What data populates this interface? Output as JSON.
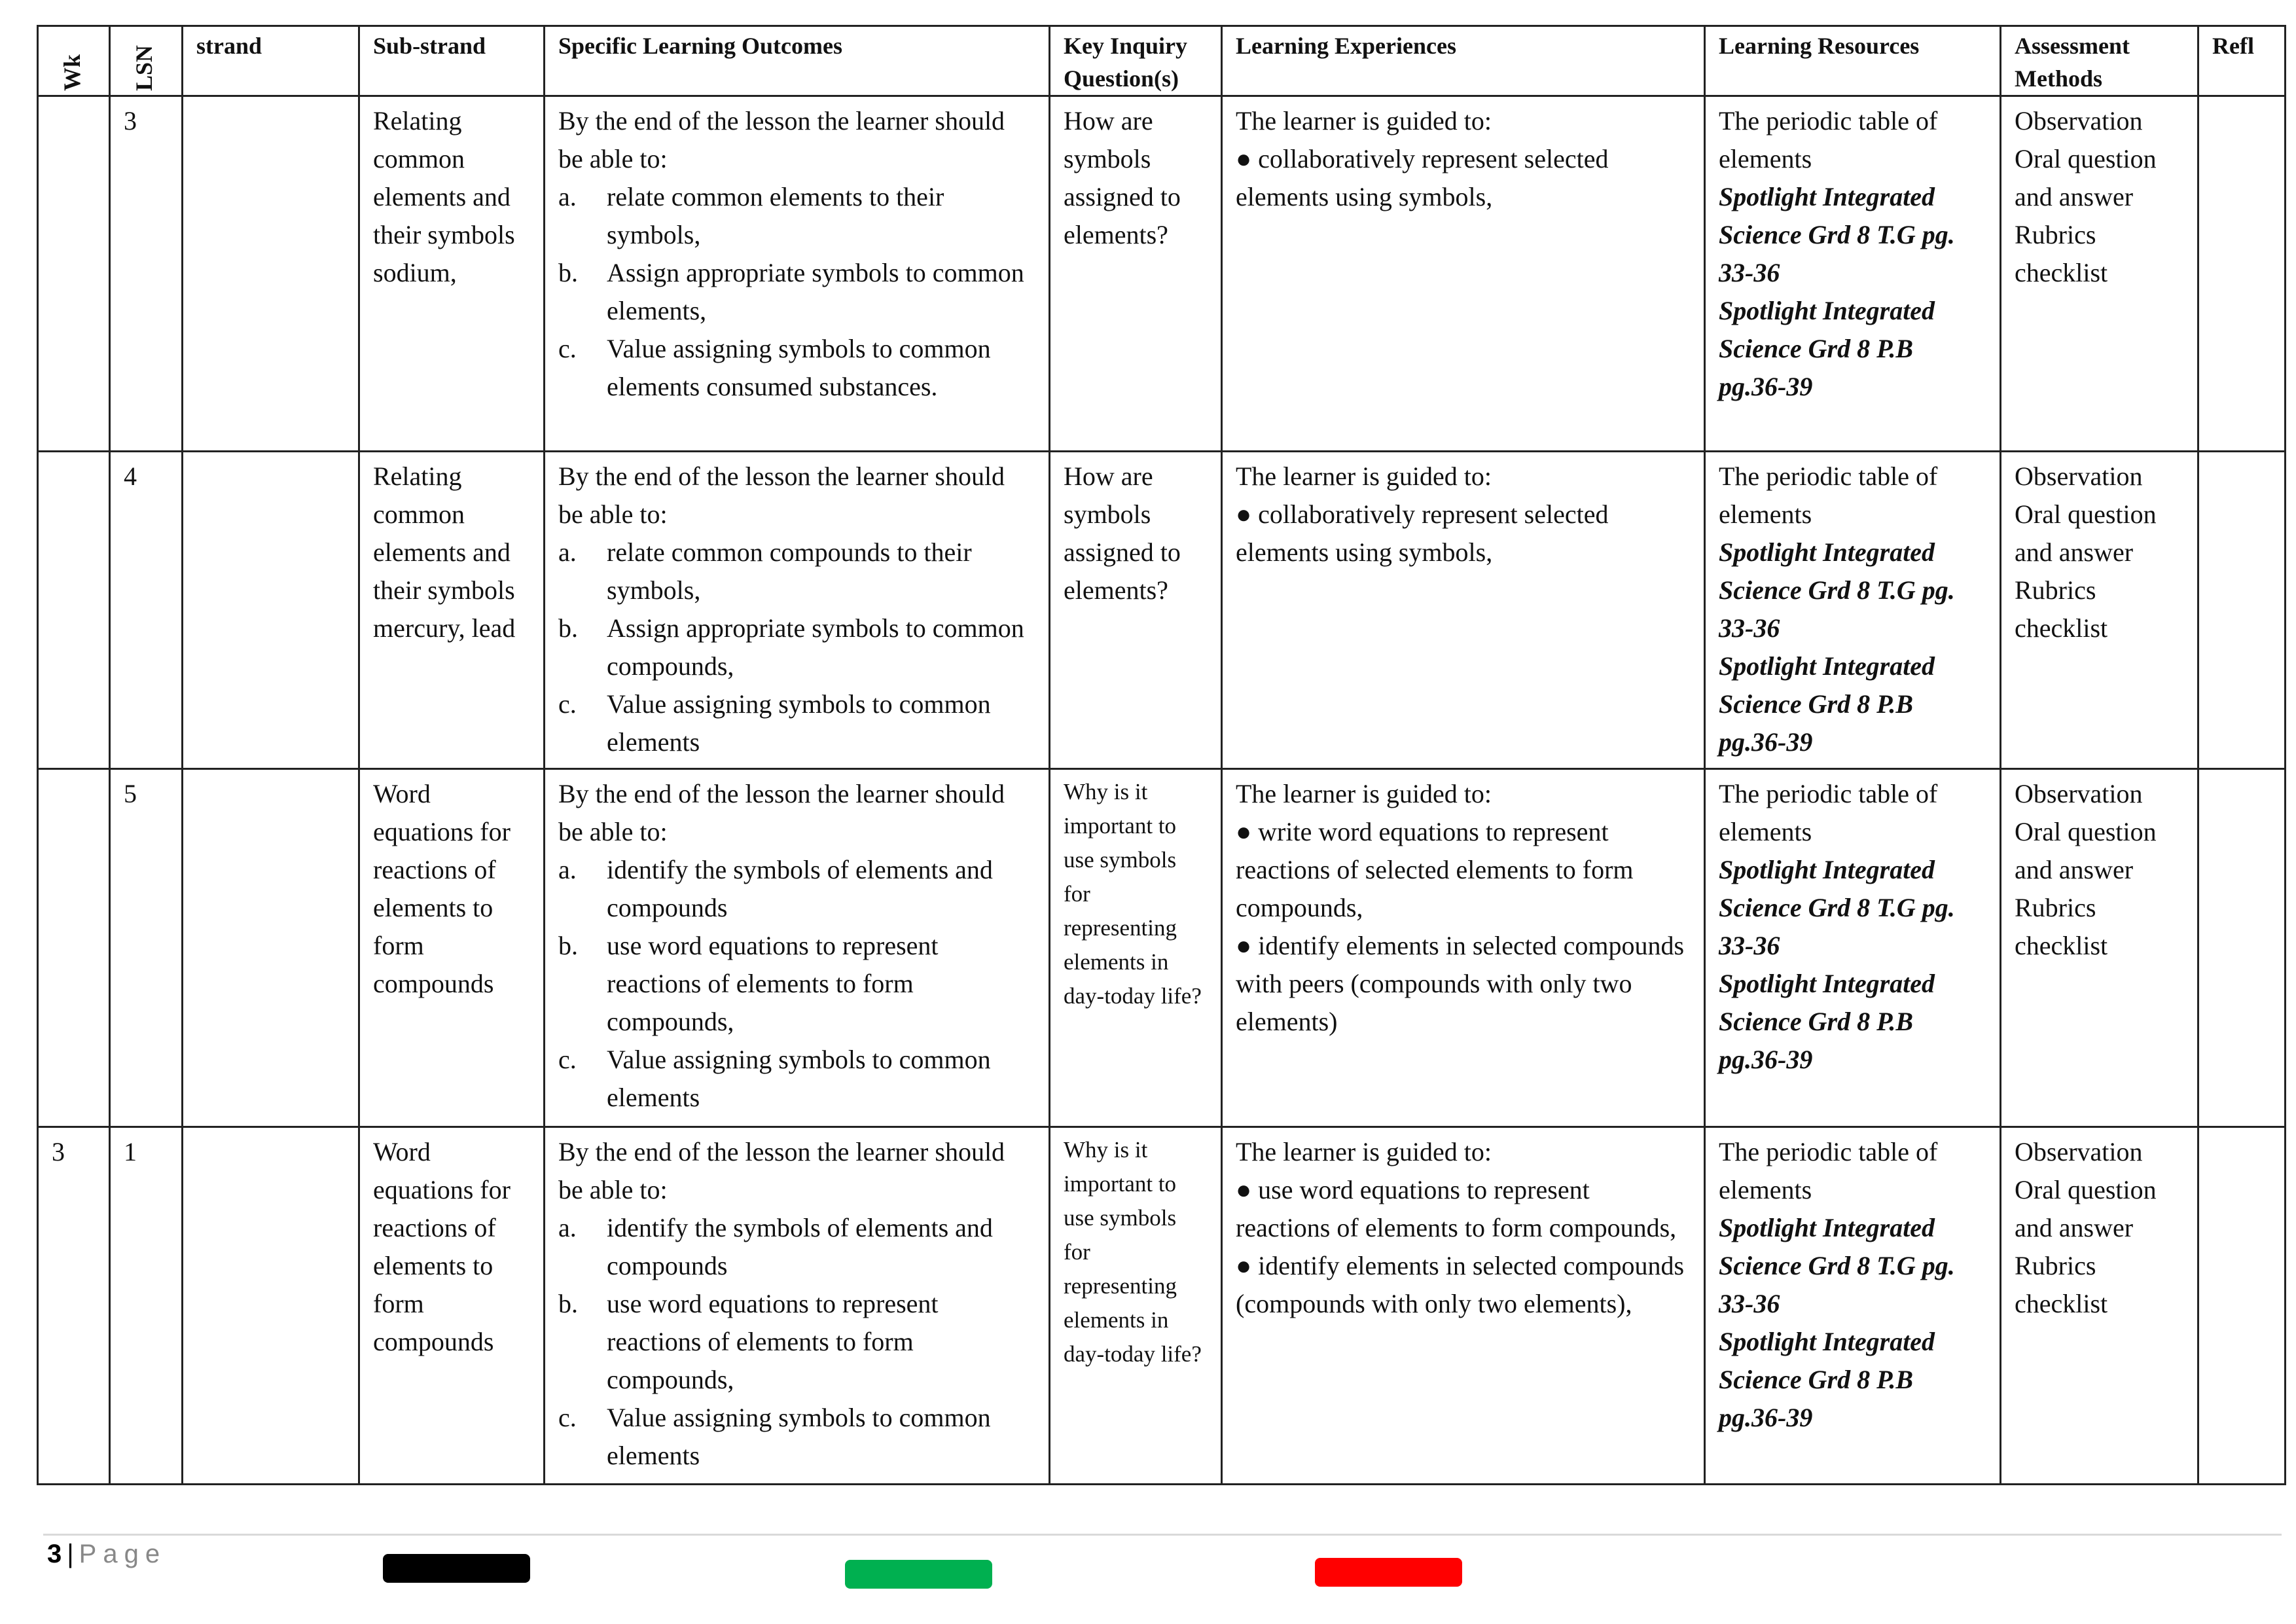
{
  "headers": [
    "Wk",
    "LSN",
    "strand",
    "Sub-strand",
    "Specific Learning Outcomes",
    "Key Inquiry Question(s)",
    "Learning Experiences",
    "Learning Resources",
    "Assessment Methods",
    "Refl"
  ],
  "rows": [
    {
      "wk": "",
      "lsn": "3",
      "strand": "",
      "substrand": "Relating common elements and their symbols sodium,",
      "slo_intro": "By the end of the lesson the learner should be able to:",
      "slo": [
        [
          "a.",
          "relate common elements to their symbols,"
        ],
        [
          "b.",
          "Assign appropriate symbols to common elements,"
        ],
        [
          "c.",
          "Value assigning symbols to common elements consumed substances."
        ]
      ],
      "kiq": "How are symbols assigned to elements?",
      "le_intro": "The learner is guided to:",
      "le": [
        "● collaboratively represent selected elements using symbols,"
      ],
      "res_plain": "The periodic table of elements",
      "res_italic": [
        "Spotlight Integrated Science Grd 8 T.G pg. 33-36",
        "Spotlight Integrated Science Grd 8 P.B pg.36-39"
      ],
      "assess": [
        "Observation",
        "Oral question and answer",
        "Rubrics",
        "checklist"
      ],
      "refl": ""
    },
    {
      "wk": "",
      "lsn": "4",
      "strand": "",
      "substrand": "Relating common elements and their symbols mercury, lead",
      "slo_intro": "By the end of the lesson the learner should be able to:",
      "slo": [
        [
          "a.",
          "relate common compounds to their symbols,"
        ],
        [
          "b.",
          "Assign appropriate symbols to common compounds,"
        ],
        [
          "c.",
          "Value assigning symbols to common elements"
        ]
      ],
      "kiq": "How are symbols assigned to elements?",
      "le_intro": "The learner is guided to:",
      "le": [
        "● collaboratively represent selected elements using symbols,"
      ],
      "res_plain": "The periodic table of elements",
      "res_italic": [
        "Spotlight Integrated Science Grd 8 T.G pg. 33-36",
        "Spotlight Integrated Science Grd 8 P.B pg.36-39"
      ],
      "assess": [
        "Observation",
        "Oral question and answer",
        "Rubrics",
        "checklist"
      ],
      "refl": ""
    },
    {
      "wk": "",
      "lsn": "5",
      "strand": "",
      "substrand": "Word equations for reactions of elements to form compounds",
      "slo_intro": "By the end of the lesson the learner should be able to:",
      "slo": [
        [
          "a.",
          "identify the symbols of elements and compounds"
        ],
        [
          "b.",
          "use word equations to represent reactions of elements to form compounds,"
        ],
        [
          "c.",
          "Value assigning symbols to common elements"
        ]
      ],
      "kiq": "Why is it important to use symbols for representing elements in day-today life?",
      "le_intro": "The learner is guided to:",
      "le": [
        "● write word equations to represent reactions of selected elements to form compounds,",
        "● identify elements in selected compounds with peers (compounds with only two elements)"
      ],
      "res_plain": "The periodic table of elements",
      "res_italic": [
        "Spotlight Integrated Science Grd 8 T.G pg. 33-36",
        "Spotlight Integrated Science Grd 8 P.B pg.36-39"
      ],
      "assess": [
        "Observation",
        "Oral question and answer",
        "Rubrics",
        "checklist"
      ],
      "refl": ""
    },
    {
      "wk": "3",
      "lsn": "1",
      "strand": "",
      "substrand": "Word equations for reactions of elements to form compounds",
      "slo_intro": "By the end of the lesson the learner should be able to:",
      "slo": [
        [
          "a.",
          "identify the symbols of elements and compounds"
        ],
        [
          "b.",
          "use word equations to represent reactions of elements to form compounds,"
        ],
        [
          "c.",
          "Value assigning symbols to common elements"
        ]
      ],
      "kiq": "Why is it important to use symbols for representing elements in day-today life?",
      "le_intro": "The learner is guided to:",
      "le": [
        "● use word equations to represent reactions of elements to form compounds,",
        "● identify elements in selected compounds (compounds with only two elements),"
      ],
      "res_plain": "The periodic table of elements",
      "res_italic": [
        "Spotlight Integrated Science Grd 8 T.G pg. 33-36",
        "Spotlight Integrated Science Grd 8 P.B pg.36-39"
      ],
      "assess": [
        "Observation",
        "Oral question and answer",
        "Rubrics",
        "checklist"
      ],
      "refl": ""
    }
  ],
  "footer": {
    "page_number": "3",
    "separator": "|",
    "page_label": "Page"
  },
  "colors": {
    "black_bar": "#000000",
    "green_bar": "#00b050",
    "red_bar": "#ff0000"
  }
}
